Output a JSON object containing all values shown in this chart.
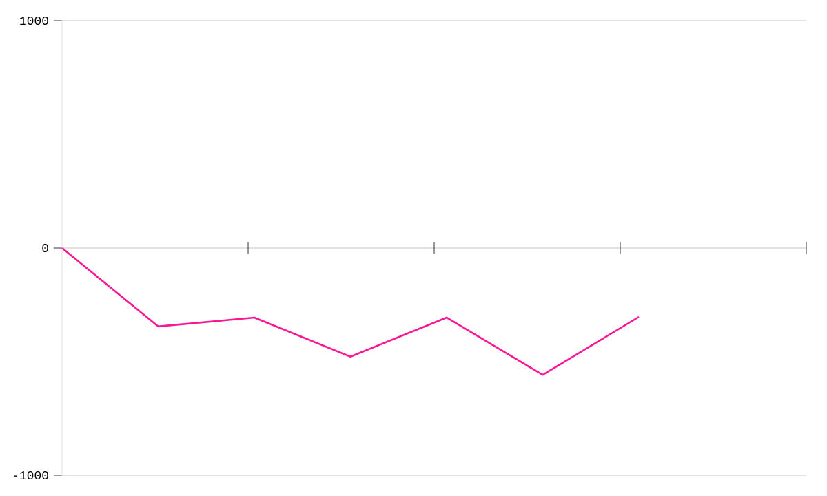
{
  "chart_data": {
    "type": "line",
    "categories": [
      null,
      null,
      null,
      null,
      null,
      null,
      null
    ],
    "series": [
      {
        "color": "#ff1493",
        "values": [
          0,
          -345,
          -306,
          -478,
          -306,
          -558,
          -303
        ]
      }
    ],
    "ylim": [
      -1000,
      1000
    ],
    "yticks": [
      -1000,
      0,
      1000
    ],
    "tick_labels": "y",
    "grid": "y",
    "marker": "none",
    "line_style": "solid"
  }
}
